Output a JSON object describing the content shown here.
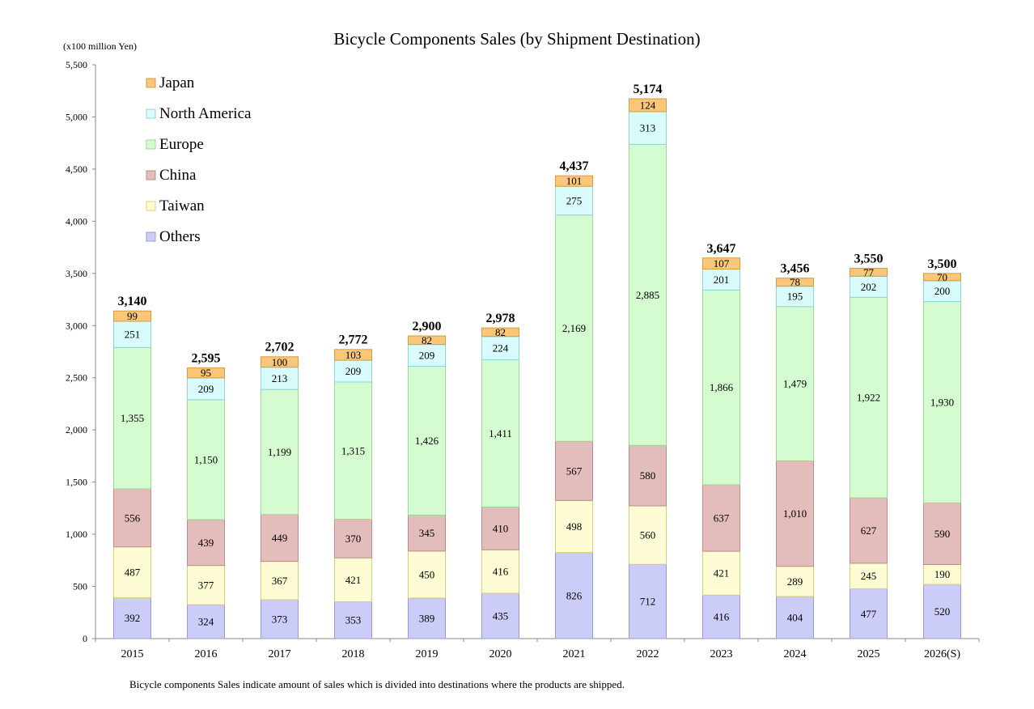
{
  "chart_data": {
    "type": "bar",
    "stacked": true,
    "title": "Bicycle Components Sales (by Shipment Destination)",
    "ylabel": "(x100 million Yen)",
    "xlabel": "",
    "ylim": [
      0,
      5500
    ],
    "yticks": [
      0,
      500,
      1000,
      1500,
      2000,
      2500,
      3000,
      3500,
      4000,
      4500,
      5000,
      5500
    ],
    "ytick_labels": [
      "0",
      "500",
      "1,000",
      "1,500",
      "2,000",
      "2,500",
      "3,000",
      "3,500",
      "4,000",
      "4,500",
      "5,000",
      "5,500"
    ],
    "grid": false,
    "legend_position": "top-left",
    "categories": [
      "2015",
      "2016",
      "2017",
      "2018",
      "2019",
      "2020",
      "2021",
      "2022",
      "2023",
      "2024",
      "2025",
      "2026(S)"
    ],
    "totals": [
      3140,
      2595,
      2702,
      2772,
      2900,
      2978,
      4437,
      5174,
      3647,
      3456,
      3550,
      3500
    ],
    "total_labels": [
      "3,140",
      "2,595",
      "2,702",
      "2,772",
      "2,900",
      "2,978",
      "4,437",
      "5,174",
      "3,647",
      "3,456",
      "3,550",
      "3,500"
    ],
    "series": [
      {
        "name": "Others",
        "color": "#ccccf8",
        "border": "#9a9ad8",
        "values": [
          392,
          324,
          373,
          353,
          389,
          435,
          826,
          712,
          416,
          404,
          477,
          520
        ],
        "labels": [
          "392",
          "324",
          "373",
          "353",
          "389",
          "435",
          "826",
          "712",
          "416",
          "404",
          "477",
          "520"
        ]
      },
      {
        "name": "Taiwan",
        "color": "#fefcd5",
        "border": "#d9cf7a",
        "values": [
          487,
          377,
          367,
          421,
          450,
          416,
          498,
          560,
          421,
          289,
          245,
          190
        ],
        "labels": [
          "487",
          "377",
          "367",
          "421",
          "450",
          "416",
          "498",
          "560",
          "421",
          "289",
          "245",
          "190"
        ]
      },
      {
        "name": "China",
        "color": "#e3bcbc",
        "border": "#c08b8b",
        "values": [
          556,
          439,
          449,
          370,
          345,
          410,
          567,
          580,
          637,
          1010,
          627,
          590
        ],
        "labels": [
          "556",
          "439",
          "449",
          "370",
          "345",
          "410",
          "567",
          "580",
          "637",
          "1,010",
          "627",
          "590"
        ]
      },
      {
        "name": "Europe",
        "color": "#d5fcd0",
        "border": "#9fd896",
        "values": [
          1355,
          1150,
          1199,
          1315,
          1426,
          1411,
          2169,
          2885,
          1866,
          1479,
          1922,
          1930
        ],
        "labels": [
          "1,355",
          "1,150",
          "1,199",
          "1,315",
          "1,426",
          "1,411",
          "2,169",
          "2,885",
          "1,866",
          "1,479",
          "1,922",
          "1,930"
        ]
      },
      {
        "name": "North America",
        "color": "#d9fbfb",
        "border": "#8fd6d6",
        "values": [
          251,
          209,
          213,
          209,
          209,
          224,
          275,
          313,
          201,
          195,
          202,
          200
        ],
        "labels": [
          "251",
          "209",
          "213",
          "209",
          "209",
          "224",
          "275",
          "313",
          "201",
          "195",
          "202",
          "200"
        ]
      },
      {
        "name": "Japan",
        "color": "#f9c77a",
        "border": "#d89a3a",
        "values": [
          99,
          95,
          100,
          103,
          82,
          82,
          101,
          124,
          107,
          78,
          77,
          70
        ],
        "labels": [
          "99",
          "95",
          "100",
          "103",
          "82",
          "82",
          "101",
          "124",
          "107",
          "78",
          "77",
          "70"
        ]
      }
    ],
    "legend_order": [
      "Japan",
      "North America",
      "Europe",
      "China",
      "Taiwan",
      "Others"
    ]
  },
  "footnote": "Bicycle components Sales indicate amount of sales which is divided into destinations where the products are shipped."
}
